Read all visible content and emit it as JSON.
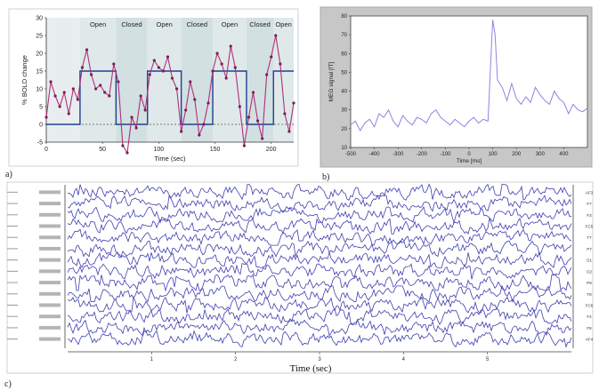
{
  "panel_labels": {
    "a": "a)",
    "b": "b)",
    "c": "c)"
  },
  "chart_data": [
    {
      "id": "a",
      "type": "line",
      "xlabel": "Time (sec)",
      "ylabel": "% BOLD change",
      "xlim": [
        0,
        220
      ],
      "ylim": [
        -5,
        30
      ],
      "xticks": [
        0,
        50,
        100,
        150,
        200
      ],
      "yticks": [
        -5,
        0,
        5,
        10,
        15,
        20,
        25,
        30
      ],
      "blocks": [
        {
          "label": "Open",
          "start": 30,
          "end": 62
        },
        {
          "label": "Closed",
          "start": 62,
          "end": 90
        },
        {
          "label": "Open",
          "start": 90,
          "end": 120
        },
        {
          "label": "Closed",
          "start": 120,
          "end": 148
        },
        {
          "label": "Open",
          "start": 148,
          "end": 178
        },
        {
          "label": "Closed",
          "start": 178,
          "end": 202
        },
        {
          "label": "Open",
          "start": 202,
          "end": 220
        }
      ],
      "series": [
        {
          "role": "measured",
          "color": "#b0307a",
          "x": [
            0,
            4,
            8,
            12,
            16,
            20,
            24,
            28,
            32,
            36,
            40,
            44,
            48,
            52,
            56,
            60,
            64,
            68,
            72,
            76,
            80,
            84,
            88,
            92,
            96,
            100,
            104,
            108,
            112,
            116,
            120,
            124,
            128,
            132,
            136,
            140,
            144,
            148,
            152,
            156,
            160,
            164,
            168,
            172,
            176,
            180,
            184,
            188,
            192,
            196,
            200,
            204,
            208,
            212,
            216,
            220
          ],
          "y": [
            2,
            12,
            8,
            5,
            9,
            3,
            10,
            7,
            16,
            21,
            14,
            10,
            11,
            9,
            8,
            17,
            12,
            -6,
            -8,
            2,
            -1,
            8,
            4,
            14,
            18,
            16,
            15,
            19,
            13,
            10,
            -2,
            4,
            12,
            7,
            -3,
            0,
            6,
            15,
            20,
            17,
            13,
            22,
            16,
            5,
            -6,
            2,
            9,
            1,
            -4,
            14,
            19,
            25,
            17,
            3,
            -2,
            6
          ]
        },
        {
          "role": "model",
          "color": "#1f3f8f",
          "x": [
            0,
            30,
            30,
            62,
            62,
            90,
            90,
            120,
            120,
            148,
            148,
            178,
            178,
            202,
            202,
            220
          ],
          "y": [
            0,
            0,
            15,
            15,
            0,
            0,
            15,
            15,
            0,
            0,
            15,
            15,
            0,
            0,
            15,
            15
          ]
        }
      ]
    },
    {
      "id": "b",
      "type": "line",
      "xlabel": "Time [ms]",
      "ylabel": "MEG signal [fT]",
      "xlim": [
        -500,
        500
      ],
      "ylim": [
        10,
        80
      ],
      "xticks": [
        -500,
        -400,
        -300,
        -200,
        -100,
        0,
        100,
        200,
        300,
        400
      ],
      "yticks": [
        10,
        20,
        30,
        40,
        50,
        60,
        70,
        80
      ],
      "series": [
        {
          "color": "#8a86e0",
          "x": [
            -500,
            -480,
            -460,
            -440,
            -420,
            -400,
            -380,
            -360,
            -340,
            -320,
            -300,
            -280,
            -260,
            -240,
            -220,
            -200,
            -180,
            -160,
            -140,
            -120,
            -100,
            -80,
            -60,
            -40,
            -20,
            0,
            20,
            40,
            60,
            80,
            100,
            110,
            120,
            140,
            160,
            180,
            200,
            220,
            240,
            260,
            280,
            300,
            320,
            340,
            360,
            380,
            400,
            420,
            440,
            460,
            480,
            500
          ],
          "y": [
            22,
            24,
            19,
            23,
            25,
            21,
            28,
            26,
            30,
            24,
            21,
            27,
            24,
            22,
            26,
            25,
            23,
            28,
            30,
            26,
            24,
            22,
            25,
            23,
            21,
            24,
            26,
            23,
            25,
            24,
            78,
            70,
            46,
            42,
            35,
            44,
            36,
            33,
            37,
            34,
            42,
            38,
            35,
            33,
            40,
            36,
            34,
            28,
            33,
            30,
            29,
            31
          ]
        }
      ]
    },
    {
      "id": "c",
      "type": "line",
      "xlabel": "Time (sec)",
      "channel_count": 14,
      "channel_labels": [
        "AF3",
        "F7",
        "F3",
        "FC5",
        "T7",
        "P7",
        "O1",
        "O2",
        "P8",
        "T8",
        "FC6",
        "F4",
        "F8",
        "AF4"
      ],
      "xlim": [
        0,
        6
      ],
      "xticks": [
        1,
        2,
        3,
        4,
        5
      ]
    }
  ]
}
